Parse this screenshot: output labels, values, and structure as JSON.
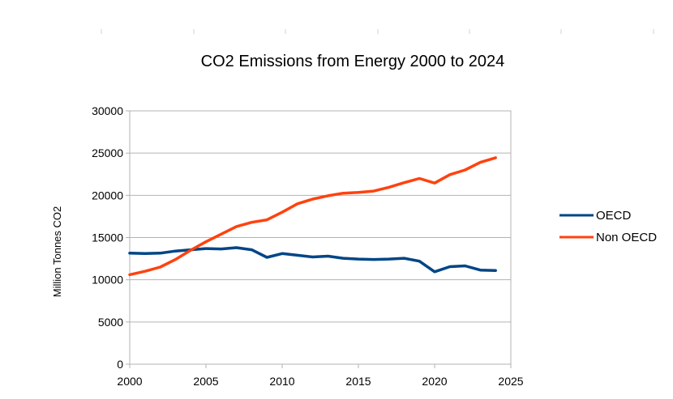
{
  "chart_data": {
    "type": "line",
    "title": "CO2 Emissions from Energy 2000 to 2024",
    "xlabel": "",
    "ylabel": "Million Tonnes CO2",
    "xlim": [
      2000,
      2025
    ],
    "ylim": [
      0,
      30000
    ],
    "x_ticks": [
      2000,
      2005,
      2010,
      2015,
      2020,
      2025
    ],
    "y_ticks": [
      0,
      5000,
      10000,
      15000,
      20000,
      25000,
      30000
    ],
    "grid": true,
    "legend_position": "right",
    "x": [
      2000,
      2001,
      2002,
      2003,
      2004,
      2005,
      2006,
      2007,
      2008,
      2009,
      2010,
      2011,
      2012,
      2013,
      2014,
      2015,
      2016,
      2017,
      2018,
      2019,
      2020,
      2021,
      2022,
      2023,
      2024
    ],
    "series": [
      {
        "name": "OECD",
        "color": "#004586",
        "values": [
          13150,
          13100,
          13150,
          13400,
          13550,
          13700,
          13650,
          13800,
          13550,
          12650,
          13100,
          12900,
          12700,
          12800,
          12550,
          12450,
          12400,
          12450,
          12550,
          12200,
          10950,
          11550,
          11650,
          11150,
          11100
        ]
      },
      {
        "name": "Non OECD",
        "color": "#ff420e",
        "values": [
          10600,
          11000,
          11500,
          12400,
          13500,
          14500,
          15400,
          16300,
          16800,
          17100,
          18000,
          19000,
          19550,
          19950,
          20250,
          20350,
          20500,
          20950,
          21500,
          22000,
          21450,
          22450,
          23000,
          23900,
          24450
        ]
      }
    ]
  }
}
